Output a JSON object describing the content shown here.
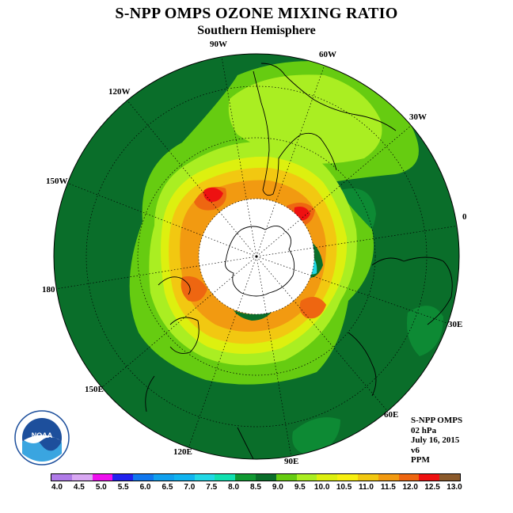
{
  "title": "S-NPP OMPS OZONE MIXING RATIO",
  "subtitle": "Southern Hemisphere",
  "longitude_labels": [
    "90W",
    "60W",
    "30W",
    "0",
    "30E",
    "60E",
    "90E",
    "120E",
    "150E",
    "180",
    "150W",
    "120W"
  ],
  "info": {
    "instrument": "S-NPP OMPS",
    "pressure": "02 hPa",
    "date": "July 16, 2015",
    "version": "v6",
    "units": "PPM"
  },
  "logo_text": "NOAA",
  "colorbar": {
    "ticks": [
      "4.0",
      "4.5",
      "5.0",
      "5.5",
      "6.0",
      "6.5",
      "7.0",
      "7.5",
      "8.0",
      "8.5",
      "9.0",
      "9.5",
      "10.0",
      "10.5",
      "11.0",
      "11.5",
      "12.0",
      "12.5",
      "13.0"
    ],
    "colors": [
      "#b07be8",
      "#d9a8f3",
      "#ee10ee",
      "#2222ee",
      "#1177ee",
      "#11a0ee",
      "#11b4f0",
      "#22d8e6",
      "#11e0b0",
      "#119933",
      "#0a6e2a",
      "#66cc11",
      "#aaee22",
      "#ddf00f",
      "#f8f011",
      "#f2c811",
      "#f29a11",
      "#ee6611",
      "#ee1111",
      "#8b5a2b"
    ]
  },
  "map": {
    "projection": "south-polar-stereographic",
    "background_color": "#0a6e2a",
    "polar_night_color": "#ffffff"
  }
}
